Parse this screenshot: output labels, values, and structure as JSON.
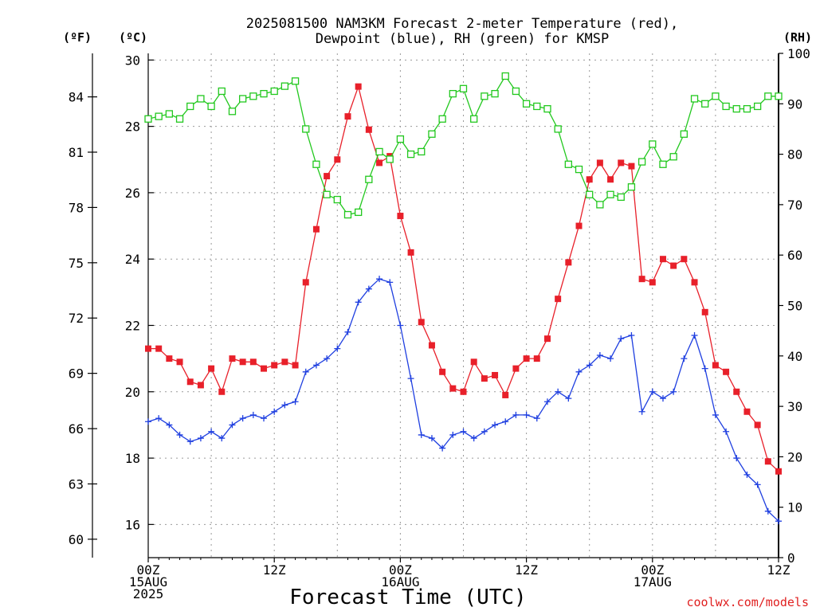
{
  "chart_data": {
    "type": "line",
    "title": "2025081500 NAM3KM Forecast 2-meter Temperature (red),",
    "subtitle": "Dewpoint (blue), RH (green) for KMSP",
    "xlabel": "Forecast Time (UTC)",
    "credit": "coolwx.com/models",
    "left_axis_f": {
      "label": "(ºF)",
      "ticks": [
        "84",
        "81",
        "78",
        "75",
        "72",
        "69",
        "66",
        "63",
        "60"
      ]
    },
    "left_axis_c": {
      "label": "(ºC)",
      "ticks": [
        "30",
        "28",
        "26",
        "24",
        "22",
        "20",
        "18",
        "16"
      ],
      "ylim": [
        15,
        30.2
      ]
    },
    "right_axis": {
      "label": "(RH)",
      "ticks": [
        "100",
        "90",
        "80",
        "70",
        "60",
        "50",
        "40",
        "30",
        "20",
        "10",
        "0"
      ],
      "ylim": [
        0,
        100
      ]
    },
    "x_ticks": [
      {
        "hour": 0,
        "lines": [
          "00Z",
          "15AUG",
          "2025"
        ]
      },
      {
        "hour": 12,
        "lines": [
          "12Z"
        ]
      },
      {
        "hour": 24,
        "lines": [
          "00Z",
          "16AUG"
        ]
      },
      {
        "hour": 36,
        "lines": [
          "12Z"
        ]
      },
      {
        "hour": 48,
        "lines": [
          "00Z",
          "17AUG"
        ]
      },
      {
        "hour": 60,
        "lines": [
          "12Z"
        ]
      }
    ],
    "xlim": [
      0,
      60
    ],
    "grid": true,
    "series": [
      {
        "name": "2-meter Temperature",
        "axis": "C",
        "color": "#e8202a",
        "marker": "filled-square",
        "x": [
          0,
          1,
          2,
          3,
          4,
          5,
          6,
          7,
          8,
          9,
          10,
          11,
          12,
          13,
          14,
          15,
          16,
          17,
          18,
          19,
          20,
          21,
          22,
          23,
          24,
          25,
          26,
          27,
          28,
          29,
          30,
          31,
          32,
          33,
          34,
          35,
          36,
          37,
          38,
          39,
          40,
          41,
          42,
          43,
          44,
          45,
          46,
          47,
          48,
          49,
          50,
          51,
          52,
          53,
          54,
          55,
          56,
          57,
          58,
          59,
          60
        ],
        "values": [
          21.3,
          21.3,
          21.0,
          20.9,
          20.3,
          20.2,
          20.7,
          20.0,
          21.0,
          20.9,
          20.9,
          20.7,
          20.8,
          20.9,
          20.8,
          23.3,
          24.9,
          26.5,
          27.0,
          28.3,
          29.2,
          27.9,
          26.9,
          27.1,
          25.3,
          24.2,
          22.1,
          21.4,
          20.6,
          20.1,
          20.0,
          20.9,
          20.4,
          20.5,
          19.9,
          20.7,
          21.0,
          21.0,
          21.6,
          22.8,
          23.9,
          25.0,
          26.4,
          26.9,
          26.4,
          26.9,
          26.8,
          23.4,
          23.3,
          24.0,
          23.8,
          24.0,
          23.3,
          22.4,
          20.8,
          20.6,
          20.0,
          19.4,
          19.0,
          17.9,
          17.6
        ]
      },
      {
        "name": "Dewpoint",
        "axis": "C",
        "color": "#1f3fe0",
        "marker": "plus",
        "x": [
          0,
          1,
          2,
          3,
          4,
          5,
          6,
          7,
          8,
          9,
          10,
          11,
          12,
          13,
          14,
          15,
          16,
          17,
          18,
          19,
          20,
          21,
          22,
          23,
          24,
          25,
          26,
          27,
          28,
          29,
          30,
          31,
          32,
          33,
          34,
          35,
          36,
          37,
          38,
          39,
          40,
          41,
          42,
          43,
          44,
          45,
          46,
          47,
          48,
          49,
          50,
          51,
          52,
          53,
          54,
          55,
          56,
          57,
          58,
          59,
          60
        ],
        "values": [
          19.1,
          19.2,
          19.0,
          18.7,
          18.5,
          18.6,
          18.8,
          18.6,
          19.0,
          19.2,
          19.3,
          19.2,
          19.4,
          19.6,
          19.7,
          20.6,
          20.8,
          21.0,
          21.3,
          21.8,
          22.7,
          23.1,
          23.4,
          23.3,
          22.0,
          20.4,
          18.7,
          18.6,
          18.3,
          18.7,
          18.8,
          18.6,
          18.8,
          19.0,
          19.1,
          19.3,
          19.3,
          19.2,
          19.7,
          20.0,
          19.8,
          20.6,
          20.8,
          21.1,
          21.0,
          21.6,
          21.7,
          19.4,
          20.0,
          19.8,
          20.0,
          21.0,
          21.7,
          20.7,
          19.3,
          18.8,
          18.0,
          17.5,
          17.2,
          16.4,
          16.1
        ]
      },
      {
        "name": "RH",
        "axis": "RH",
        "color": "#22c81e",
        "marker": "open-square",
        "x": [
          0,
          1,
          2,
          3,
          4,
          5,
          6,
          7,
          8,
          9,
          10,
          11,
          12,
          13,
          14,
          15,
          16,
          17,
          18,
          19,
          20,
          21,
          22,
          23,
          24,
          25,
          26,
          27,
          28,
          29,
          30,
          31,
          32,
          33,
          34,
          35,
          36,
          37,
          38,
          39,
          40,
          41,
          42,
          43,
          44,
          45,
          46,
          47,
          48,
          49,
          50,
          51,
          52,
          53,
          54,
          55,
          56,
          57,
          58,
          59,
          60
        ],
        "values": [
          87,
          87.5,
          88,
          87,
          89.5,
          91,
          89.5,
          92.5,
          88.5,
          91,
          91.5,
          92,
          92.5,
          93.5,
          94.5,
          85,
          78,
          72,
          71,
          68,
          68.5,
          75,
          80.5,
          79,
          83,
          80,
          80.5,
          84,
          87,
          92,
          93,
          87,
          91.5,
          92,
          95.5,
          92.5,
          90,
          89.5,
          89,
          85,
          78,
          77,
          72,
          70,
          72,
          71.5,
          73.5,
          78.5,
          82,
          78,
          79.5,
          84,
          91,
          90,
          91.5,
          89.5,
          89,
          89,
          89.5,
          91.5,
          91.5
        ]
      }
    ]
  }
}
